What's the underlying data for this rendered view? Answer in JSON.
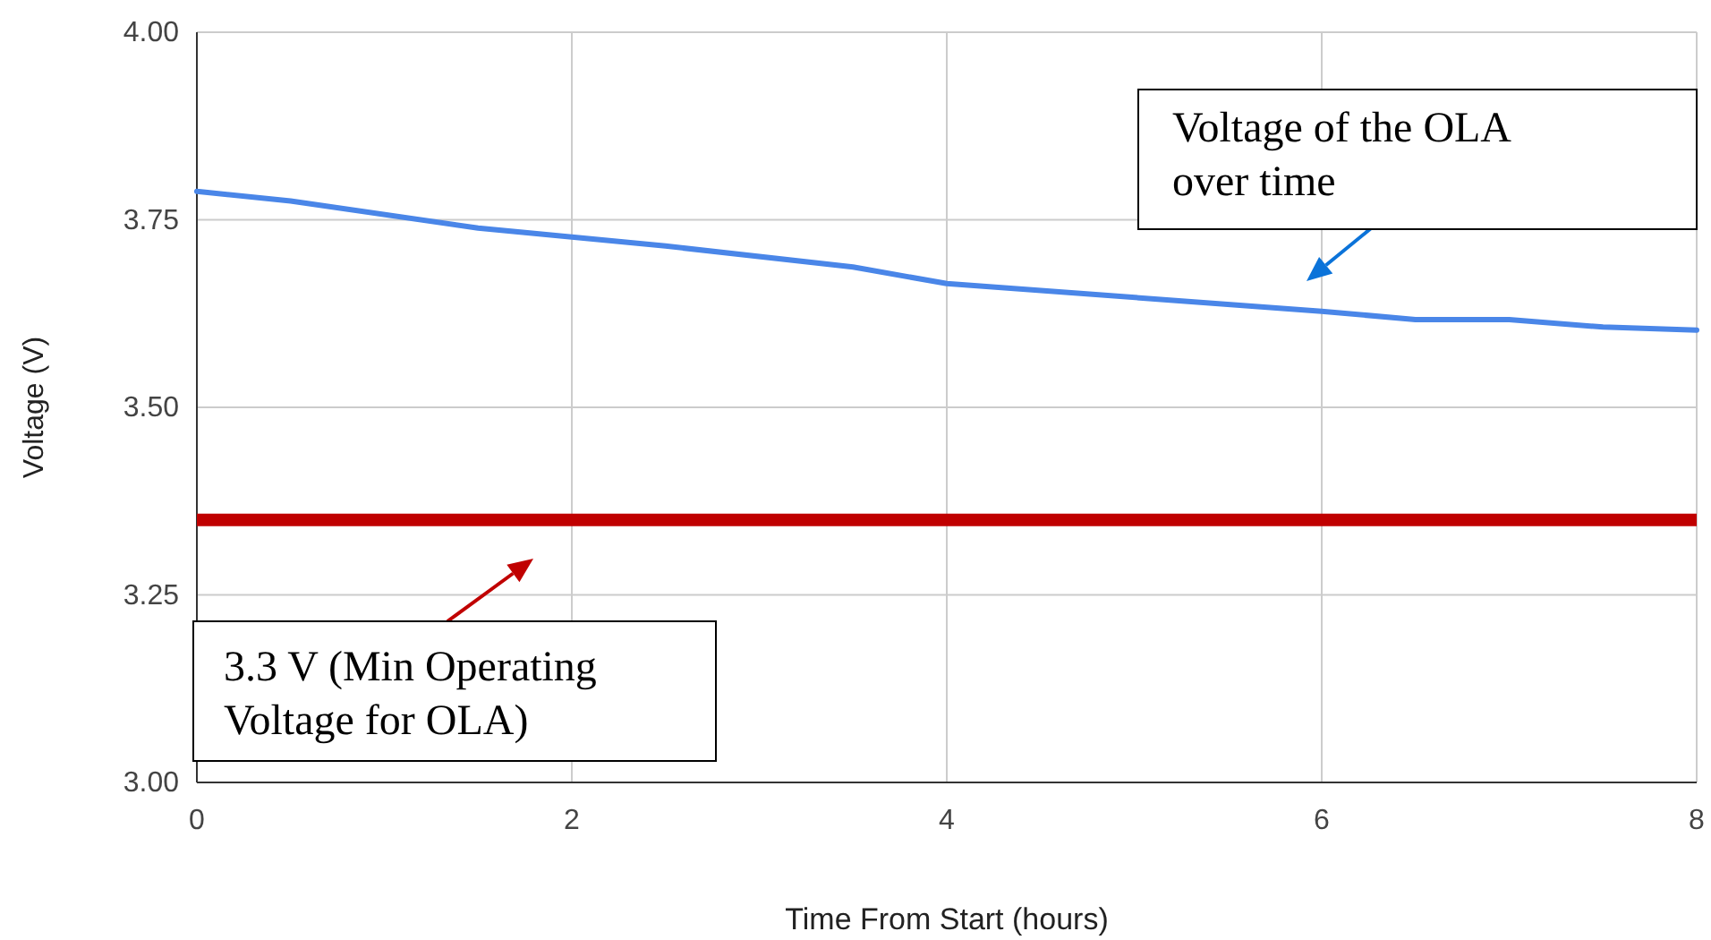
{
  "chart_data": {
    "type": "line",
    "xlabel": "Time From Start (hours)",
    "ylabel": "Voltage (V)",
    "x": [
      0,
      0.5,
      1.5,
      2,
      2.5,
      3.5,
      4,
      6,
      6.5,
      7,
      7.5,
      8
    ],
    "series": [
      {
        "color": "#4a86e8",
        "values": [
          3.788,
          3.775,
          3.739,
          3.727,
          3.715,
          3.687,
          3.665,
          3.628,
          3.617,
          3.617,
          3.607,
          3.603
        ]
      }
    ],
    "xlim": [
      0,
      8
    ],
    "xticks": [
      0,
      2,
      4,
      6,
      8
    ],
    "ylim": [
      3,
      4
    ],
    "yticks": [
      {
        "value": 3,
        "label": "3.00"
      },
      {
        "value": 3.25,
        "label": "3.25"
      },
      {
        "value": 3.5,
        "label": "3.50"
      },
      {
        "value": 3.75,
        "label": "3.75"
      },
      {
        "value": 4,
        "label": "4.00"
      }
    ],
    "grid": true,
    "ref_lines": [
      {
        "axis": "y",
        "value": 3.35,
        "label": "3.3 V (Min Operating Voltage for OLA)",
        "color": "#c00000"
      }
    ],
    "annotations": [
      "Voltage of the OLA over time"
    ]
  }
}
